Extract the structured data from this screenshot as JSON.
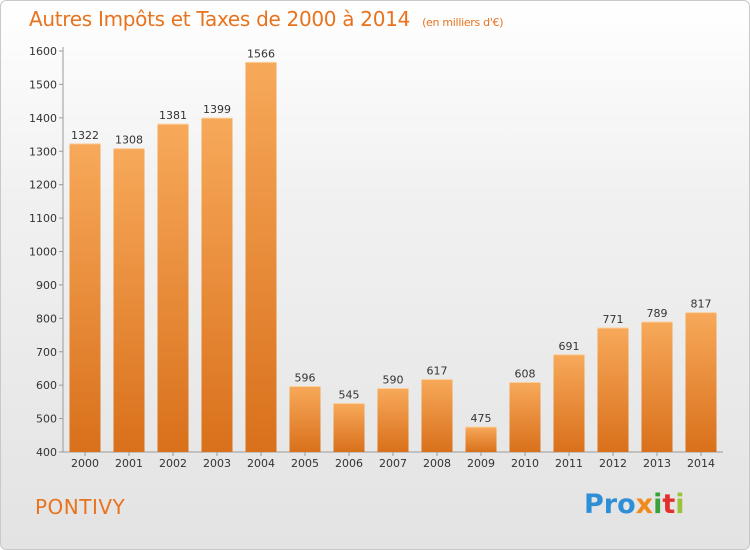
{
  "chart_data": {
    "type": "bar",
    "title": "Autres Impôts et Taxes de 2000 à 2014",
    "unit_note": "(en milliers d'€)",
    "categories": [
      "2000",
      "2001",
      "2002",
      "2003",
      "2004",
      "2005",
      "2006",
      "2007",
      "2008",
      "2009",
      "2010",
      "2011",
      "2012",
      "2013",
      "2014"
    ],
    "values": [
      1322,
      1308,
      1381,
      1399,
      1566,
      596,
      545,
      590,
      617,
      475,
      608,
      691,
      771,
      789,
      817
    ],
    "ylim": [
      400,
      1600
    ],
    "yticks": [
      "400",
      "500",
      "600",
      "700",
      "800",
      "900",
      "1000",
      "1100",
      "1200",
      "1300",
      "1400",
      "1500",
      "1600"
    ],
    "xlabel": "",
    "ylabel": "",
    "grid": false,
    "colors": {
      "bar_top": "#f7a95a",
      "bar_bottom": "#d9701b",
      "text": "#333333",
      "accent": "#e8731e"
    }
  },
  "footer": {
    "city": "PONTIVY",
    "logo": [
      "Pro",
      "x",
      "i",
      "t",
      "i"
    ]
  }
}
